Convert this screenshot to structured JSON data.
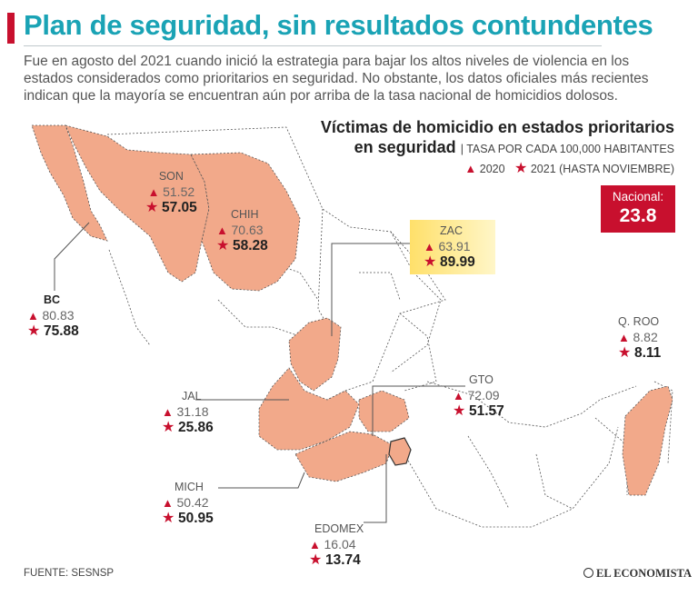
{
  "header": {
    "title": "Plan de seguridad, sin resultados contundentes",
    "intro": "Fue en agosto del 2021 cuando inició la estrategia para bajar los altos niveles de violencia en los estados considerados como prioritarios en seguridad. No obstante, los datos oficiales más recientes indican que la mayoría se encuentran aún por arriba de la tasa nacional de homicidios dolosos."
  },
  "panel": {
    "title_line1": "Víctimas de homicidio en estados prioritarios",
    "title_line2": "en seguridad",
    "subtitle": "TASA POR CADA 100,000 HABITANTES",
    "legend_2020": "2020",
    "legend_2021": "2021 (HASTA NOVIEMBRE)"
  },
  "national": {
    "label": "Nacional:",
    "value": "23.8"
  },
  "colors": {
    "accent": "#c8102e",
    "title": "#1aa3b5",
    "state_fill": "#f2a98a",
    "highlight": "#ffe06a"
  },
  "states": [
    {
      "id": "son",
      "name": "SON",
      "v2020": "51.52",
      "v2021": "57.05"
    },
    {
      "id": "chih",
      "name": "CHIH",
      "v2020": "70.63",
      "v2021": "58.28"
    },
    {
      "id": "zac",
      "name": "ZAC",
      "v2020": "63.91",
      "v2021": "89.99"
    },
    {
      "id": "bc",
      "name": "BC",
      "v2020": "80.83",
      "v2021": "75.88"
    },
    {
      "id": "qroo",
      "name": "Q. ROO",
      "v2020": "8.82",
      "v2021": "8.11"
    },
    {
      "id": "jal",
      "name": "JAL",
      "v2020": "31.18",
      "v2021": "25.86"
    },
    {
      "id": "gto",
      "name": "GTO",
      "v2020": "72.09",
      "v2021": "51.57"
    },
    {
      "id": "mich",
      "name": "MICH",
      "v2020": "50.42",
      "v2021": "50.95"
    },
    {
      "id": "edomex",
      "name": "EDOMEX",
      "v2020": "16.04",
      "v2021": "13.74"
    }
  ],
  "footer": {
    "source": "FUENTE: SESNSP",
    "brand": "EL ECONOMISTA"
  }
}
